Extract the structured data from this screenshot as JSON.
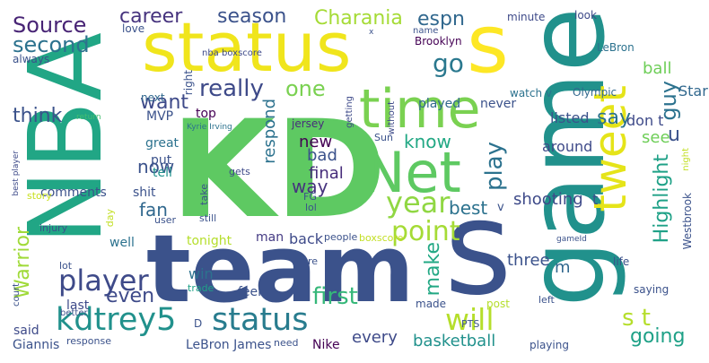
{
  "words": [
    {
      "text": "KD",
      "color": "#5ec962"
    },
    {
      "text": "team",
      "color": "#3b528b"
    },
    {
      "text": "game",
      "color": "#21918c"
    },
    {
      "text": "NBA",
      "color": "#21a685"
    },
    {
      "text": "status",
      "color": "#f0e51c"
    },
    {
      "text": "time",
      "color": "#7ad151"
    },
    {
      "text": "Net",
      "color": "#5ec962"
    },
    {
      "text": "tweet",
      "color": "#e5e419"
    },
    {
      "text": "s",
      "color": "#3b528b"
    },
    {
      "text": "s",
      "color": "#fde725"
    },
    {
      "text": "kdtrey5",
      "color": "#21918c"
    },
    {
      "text": "status",
      "color": "#287c8e"
    },
    {
      "text": "player",
      "color": "#3e4a89"
    },
    {
      "text": "will",
      "color": "#b5de2b"
    },
    {
      "text": "point",
      "color": "#a5db36"
    },
    {
      "text": "year",
      "color": "#90d743"
    },
    {
      "text": "Source",
      "color": "#482475"
    },
    {
      "text": "second",
      "color": "#2c728e"
    },
    {
      "text": "career",
      "color": "#46337e"
    },
    {
      "text": "season",
      "color": "#3b528b"
    },
    {
      "text": "Charania",
      "color": "#a5db36"
    },
    {
      "text": "espn",
      "color": "#31688e"
    },
    {
      "text": "say",
      "color": "#2c728e"
    },
    {
      "text": "don t",
      "color": "#3e4a89"
    },
    {
      "text": "see",
      "color": "#6ece58"
    },
    {
      "text": "go",
      "color": "#2a788e"
    },
    {
      "text": "really",
      "color": "#3e4a89"
    },
    {
      "text": "one",
      "color": "#7ad151"
    },
    {
      "text": "want",
      "color": "#3e4a89"
    },
    {
      "text": "guy",
      "color": "#2c728e"
    },
    {
      "text": "u",
      "color": "#3b528b"
    },
    {
      "text": "think",
      "color": "#3b528b"
    },
    {
      "text": "know",
      "color": "#22a884"
    },
    {
      "text": "play",
      "color": "#2c728e"
    },
    {
      "text": "Highlight",
      "color": "#1fa187"
    },
    {
      "text": "Warrior",
      "color": "#a0da39"
    },
    {
      "text": "even",
      "color": "#3e4a89"
    },
    {
      "text": "first",
      "color": "#35b779"
    },
    {
      "text": "s t",
      "color": "#b5de2b"
    },
    {
      "text": "going",
      "color": "#1fa187"
    },
    {
      "text": "basketball",
      "color": "#21918c"
    },
    {
      "text": "shooting",
      "color": "#3e4a89"
    },
    {
      "text": "now",
      "color": "#3b528b"
    },
    {
      "text": "fan",
      "color": "#31688e"
    },
    {
      "text": "way",
      "color": "#46337e"
    },
    {
      "text": "new",
      "color": "#440154"
    },
    {
      "text": "bad",
      "color": "#3b528b"
    },
    {
      "text": "final",
      "color": "#472d7b"
    },
    {
      "text": "best",
      "color": "#2c728e"
    },
    {
      "text": "make",
      "color": "#22a884"
    },
    {
      "text": "ball",
      "color": "#6ece58"
    },
    {
      "text": "Star",
      "color": "#31688e"
    },
    {
      "text": "m",
      "color": "#31688e"
    },
    {
      "text": "three",
      "color": "#3b528b"
    },
    {
      "text": "listed",
      "color": "#3b528b"
    },
    {
      "text": "around",
      "color": "#3e4a89"
    },
    {
      "text": "every",
      "color": "#3e4a89"
    },
    {
      "text": "respond",
      "color": "#2c728e"
    },
    {
      "text": "back",
      "color": "#3e4a89"
    },
    {
      "text": "man",
      "color": "#443a83"
    },
    {
      "text": "tonight",
      "color": "#b5de2b"
    },
    {
      "text": "win",
      "color": "#2c728e"
    },
    {
      "text": "MVP",
      "color": "#3b528b"
    },
    {
      "text": "top",
      "color": "#440154"
    },
    {
      "text": "great",
      "color": "#2c728e"
    },
    {
      "text": "put",
      "color": "#3b528b"
    },
    {
      "text": "tell",
      "color": "#21918c"
    },
    {
      "text": "comments",
      "color": "#3b528b"
    },
    {
      "text": "shit",
      "color": "#3b528b"
    },
    {
      "text": "well",
      "color": "#2c728e"
    },
    {
      "text": "said",
      "color": "#3e4a89"
    },
    {
      "text": "last",
      "color": "#3e4a89"
    },
    {
      "text": "Giannis",
      "color": "#3b528b"
    },
    {
      "text": "LeBron James",
      "color": "#3b528b"
    },
    {
      "text": "Nike",
      "color": "#440154"
    },
    {
      "text": "made",
      "color": "#3b528b"
    },
    {
      "text": "post",
      "color": "#b5de2b"
    },
    {
      "text": "playing",
      "color": "#3b528b"
    },
    {
      "text": "feel",
      "color": "#3b528b"
    },
    {
      "text": "trade",
      "color": "#1fa187"
    },
    {
      "text": "played",
      "color": "#31688e"
    },
    {
      "text": "never",
      "color": "#3b528b"
    },
    {
      "text": "Brooklyn",
      "color": "#440154"
    },
    {
      "text": "name",
      "color": "#3b528b"
    },
    {
      "text": "minute",
      "color": "#3e4a89"
    },
    {
      "text": "look",
      "color": "#3e4a89"
    },
    {
      "text": "LeBron",
      "color": "#2c728e"
    },
    {
      "text": "watch v",
      "color": "#2c728e"
    },
    {
      "text": "Olympic",
      "color": "#31688e"
    },
    {
      "text": "jersey",
      "color": "#472d7b"
    },
    {
      "text": "next",
      "color": "#31688e"
    },
    {
      "text": "love",
      "color": "#3b528b"
    },
    {
      "text": "always",
      "color": "#3b528b"
    },
    {
      "text": "right",
      "color": "#3b528b"
    },
    {
      "text": "nba boxscore",
      "color": "#3e4a89"
    },
    {
      "text": "Kyrie Irving",
      "color": "#2c728e"
    },
    {
      "text": "return",
      "color": "#44bf70"
    },
    {
      "text": "best player",
      "color": "#3e4a89"
    },
    {
      "text": "story",
      "color": "#c8e020"
    },
    {
      "text": "injury",
      "color": "#3b528b"
    },
    {
      "text": "lot",
      "color": "#3b528b"
    },
    {
      "text": "day",
      "color": "#c2df23"
    },
    {
      "text": "user",
      "color": "#3b528b"
    },
    {
      "text": "take",
      "color": "#3b528b"
    },
    {
      "text": "still",
      "color": "#3b528b"
    },
    {
      "text": "gets",
      "color": "#3e4a89"
    },
    {
      "text": "FG",
      "color": "#3b528b"
    },
    {
      "text": "lol",
      "color": "#3b528b"
    },
    {
      "text": "people",
      "color": "#3b528b"
    },
    {
      "text": "boxscore",
      "color": "#c2df23"
    },
    {
      "text": "re",
      "color": "#3b528b"
    },
    {
      "text": "Sun",
      "color": "#3b528b"
    },
    {
      "text": "getting",
      "color": "#3e4a89"
    },
    {
      "text": "without",
      "color": "#3e4a89"
    },
    {
      "text": "PTS",
      "color": "#3b528b"
    },
    {
      "text": "gameId",
      "color": "#3b528b"
    },
    {
      "text": "life",
      "color": "#3b528b"
    },
    {
      "text": "Westbrook",
      "color": "#3b528b"
    },
    {
      "text": "saying",
      "color": "#3b528b"
    },
    {
      "text": "left",
      "color": "#3b528b"
    },
    {
      "text": "night",
      "color": "#c2df23"
    },
    {
      "text": "court",
      "color": "#3b528b"
    },
    {
      "text": "better",
      "color": "#3b528b"
    },
    {
      "text": "response",
      "color": "#3b528b"
    },
    {
      "text": "need",
      "color": "#3b528b"
    },
    {
      "text": "D",
      "color": "#3b528b"
    },
    {
      "text": "x",
      "color": "#3b528b"
    },
    {
      "text": "t",
      "color": "#3b528b"
    },
    {
      "text": "v",
      "color": "#3b528b"
    }
  ]
}
